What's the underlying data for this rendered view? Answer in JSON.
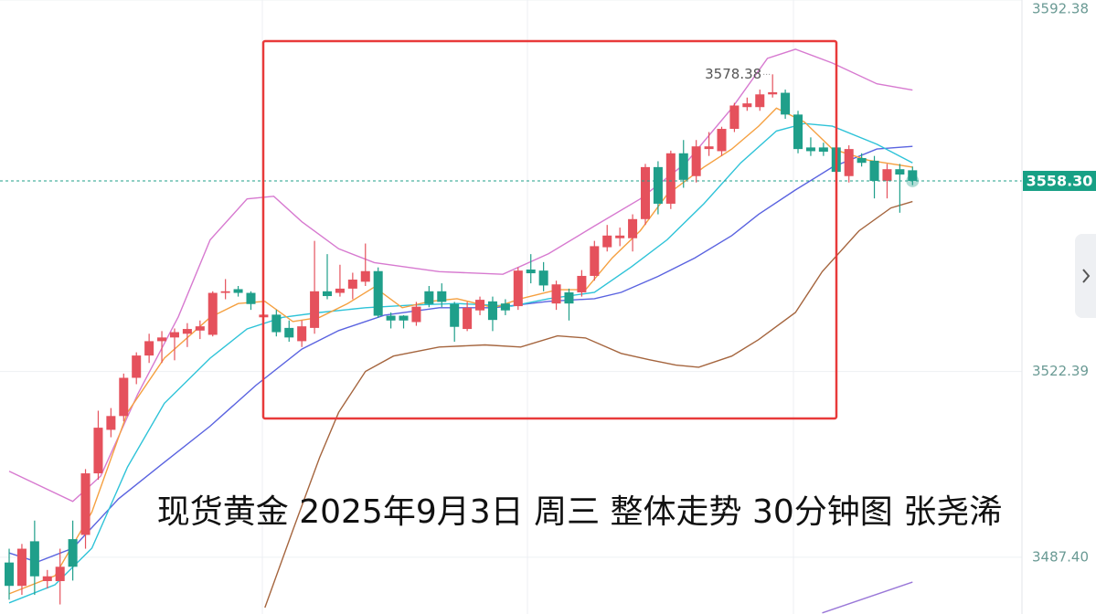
{
  "chart_data": {
    "type": "candlestick",
    "title": "现货黄金 2025年9月3日 周三 整体走势 30分钟图 张尧浠",
    "xlim": [
      -0.72,
      79.6
    ],
    "ylim": [
      3476.7,
      3592.38
    ],
    "yticks": [
      3592.38,
      3522.39,
      {
        "value": 3487.4,
        "label": "3487.40"
      }
    ],
    "current_price": {
      "value": 3558.3,
      "label": "3558.30"
    },
    "high_label": 3578.38,
    "up_color": "#e5515c",
    "down_color": "#1f9f8a",
    "open": [
      3486.4,
      3482.0,
      3490.4,
      3482.9,
      3482.9,
      3490.8,
      3491.6,
      3503.2,
      3511.4,
      3514.0,
      3521.2,
      3525.4,
      3528.1,
      3528.8,
      3529.5,
      3530.1,
      3529.3,
      3537.2,
      3537.9,
      3537.2,
      3532.6,
      3533.1,
      3530.6,
      3528.1,
      3530.6,
      3537.5,
      3537.2,
      3538.0,
      3539.3,
      3541.3,
      3532.9,
      3532.9,
      3531.7,
      3537.5,
      3537.5,
      3535.1,
      3530.4,
      3533.9,
      3535.6,
      3535.2,
      3534.7,
      3541.6,
      3541.4,
      3535.2,
      3537.3,
      3537.3,
      3540.4,
      3545.8,
      3547.5,
      3547.5,
      3551.1,
      3560.9,
      3554.0,
      3563.5,
      3559.2,
      3564.3,
      3563.9,
      3568.1,
      3572.2,
      3572.2,
      3574.6,
      3574.9,
      3570.8,
      3564.6,
      3564.6,
      3564.6,
      3559.2,
      3562.6,
      3562.1,
      3558.3,
      3560.5,
      3560.3
    ],
    "high": [
      3489.0,
      3489.9,
      3494.3,
      3485.0,
      3489.0,
      3494.3,
      3504.0,
      3515.0,
      3515.5,
      3522.0,
      3526.0,
      3529.5,
      3530.0,
      3530.5,
      3531.5,
      3532.0,
      3537.5,
      3539.8,
      3538.5,
      3537.5,
      3534.0,
      3534.0,
      3532.0,
      3532.0,
      3547.0,
      3544.5,
      3542.5,
      3541.0,
      3546.5,
      3542.0,
      3533.5,
      3533.0,
      3535.5,
      3538.5,
      3539.0,
      3535.5,
      3535.5,
      3536.5,
      3536.5,
      3536.0,
      3542.0,
      3544.5,
      3543.0,
      3539.5,
      3538.0,
      3541.5,
      3547.0,
      3550.0,
      3549.5,
      3552.0,
      3561.5,
      3562.0,
      3564.0,
      3566.0,
      3566.0,
      3567.5,
      3568.5,
      3573.0,
      3574.0,
      3575.5,
      3578.38,
      3575.5,
      3571.5,
      3566.5,
      3565.5,
      3565.5,
      3565.0,
      3563.5,
      3563.0,
      3561.5,
      3561.5,
      3561.0
    ],
    "low": [
      3479.4,
      3480.3,
      3480.3,
      3481.5,
      3478.5,
      3483.0,
      3489.0,
      3502.0,
      3510.0,
      3513.0,
      3520.0,
      3524.0,
      3524.0,
      3524.5,
      3527.0,
      3528.5,
      3529.0,
      3536.0,
      3536.5,
      3534.0,
      3532.0,
      3529.0,
      3528.0,
      3527.0,
      3529.5,
      3536.0,
      3536.5,
      3536.0,
      3538.5,
      3532.5,
      3530.5,
      3530.5,
      3531.0,
      3534.5,
      3534.5,
      3528.0,
      3530.0,
      3533.0,
      3530.0,
      3533.0,
      3534.0,
      3539.0,
      3537.5,
      3534.0,
      3532.0,
      3536.5,
      3539.5,
      3545.0,
      3546.0,
      3545.0,
      3550.0,
      3552.0,
      3553.0,
      3557.0,
      3558.0,
      3563.0,
      3563.0,
      3567.5,
      3571.5,
      3571.5,
      3574.0,
      3570.0,
      3563.5,
      3563.0,
      3563.0,
      3558.0,
      3558.0,
      3561.0,
      3555.0,
      3555.0,
      3552.3,
      3557.5
    ],
    "close": [
      3482.0,
      3489.0,
      3483.8,
      3483.8,
      3485.6,
      3485.6,
      3503.2,
      3511.8,
      3514.0,
      3521.2,
      3525.4,
      3528.1,
      3528.8,
      3529.8,
      3530.4,
      3530.9,
      3537.2,
      3537.5,
      3537.2,
      3535.1,
      3533.1,
      3529.8,
      3528.8,
      3530.9,
      3537.5,
      3536.6,
      3538.0,
      3539.7,
      3541.3,
      3532.9,
      3532.0,
      3532.0,
      3534.6,
      3535.1,
      3535.5,
      3530.8,
      3534.4,
      3535.9,
      3532.1,
      3533.9,
      3541.4,
      3540.9,
      3538.6,
      3538.8,
      3535.2,
      3540.4,
      3546.0,
      3548.0,
      3548.0,
      3551.1,
      3560.9,
      3554.0,
      3563.5,
      3558.5,
      3564.8,
      3564.8,
      3568.1,
      3572.5,
      3572.9,
      3574.6,
      3575.0,
      3570.8,
      3564.3,
      3563.9,
      3563.8,
      3560.0,
      3564.3,
      3561.7,
      3558.3,
      3560.5,
      3559.5,
      3558.3
    ],
    "series": [
      {
        "color": "#d77ad0",
        "x": [
          0,
          5.0,
          7.2,
          10.1,
          13.3,
          15.8,
          18.7,
          20.8,
          23.0,
          25.9,
          28.7,
          33.8,
          38.8,
          42.4,
          46.0,
          49.6,
          53.2,
          56.8,
          59.6,
          61.8,
          64.7,
          68.2,
          71.0
        ],
        "values": [
          3503.6,
          3497.9,
          3502.7,
          3518.1,
          3532.7,
          3547.2,
          3554.9,
          3555.4,
          3550.6,
          3545.5,
          3542.9,
          3541.2,
          3540.7,
          3544.6,
          3549.8,
          3554.9,
          3561.7,
          3572.0,
          3581.4,
          3583.1,
          3580.5,
          3576.6,
          3575.4
        ]
      },
      {
        "color": "#a5653e",
        "x": [
          20.1,
          22.3,
          24.4,
          25.9,
          28.0,
          30.2,
          33.8,
          37.4,
          40.2,
          43.1,
          45.3,
          48.1,
          50.3,
          52.4,
          54.2,
          56.8,
          58.9,
          61.8,
          63.9,
          66.8,
          69.3,
          71.0
        ],
        "values": [
          3477.9,
          3492.5,
          3506.2,
          3514.7,
          3522.4,
          3525.3,
          3527.0,
          3527.4,
          3527.0,
          3529.1,
          3528.7,
          3525.8,
          3524.6,
          3523.6,
          3523.2,
          3525.3,
          3528.4,
          3533.5,
          3541.2,
          3548.9,
          3553.2,
          3554.4
        ]
      },
      {
        "color": "#9a78d8",
        "x": [
          63.9,
          71.0
        ],
        "values": [
          3476.9,
          3482.7
        ]
      },
      {
        "color": "#5a63e0",
        "x": [
          0,
          2.2,
          5.0,
          8.6,
          12.2,
          15.8,
          19.4,
          23.0,
          25.9,
          29.5,
          33.8,
          38.1,
          42.4,
          46.0,
          48.1,
          51.0,
          53.9,
          56.8,
          58.9,
          61.8,
          64.7,
          68.2,
          71.0
        ],
        "values": [
          3488.2,
          3486.5,
          3489.1,
          3498.4,
          3505.3,
          3512.1,
          3519.8,
          3526.6,
          3530.1,
          3533.0,
          3534.4,
          3534.4,
          3535.6,
          3536.1,
          3537.3,
          3540.3,
          3543.8,
          3548.0,
          3552.0,
          3556.6,
          3560.9,
          3564.3,
          3564.8
        ]
      },
      {
        "color": "#2ec3d8",
        "x": [
          0,
          3.6,
          6.5,
          9.3,
          12.2,
          15.8,
          18.7,
          21.5,
          24.4,
          28.0,
          31.6,
          35.2,
          39.5,
          42.4,
          46.0,
          48.9,
          51.7,
          54.6,
          57.5,
          60.3,
          62.5,
          64.7,
          68.2,
          71.0
        ],
        "values": [
          3478.8,
          3482.2,
          3489.1,
          3504.4,
          3516.4,
          3524.9,
          3530.4,
          3532.6,
          3533.5,
          3534.4,
          3534.9,
          3535.2,
          3534.7,
          3536.1,
          3537.3,
          3542.1,
          3547.2,
          3554.0,
          3561.7,
          3567.7,
          3569.1,
          3568.6,
          3565.2,
          3561.7
        ]
      },
      {
        "color": "#f5a040",
        "x": [
          0,
          3.6,
          6.5,
          9.3,
          12.2,
          15.8,
          18.0,
          20.1,
          22.3,
          24.4,
          26.6,
          28.7,
          30.9,
          33.1,
          35.2,
          38.1,
          40.2,
          43.1,
          45.3,
          47.4,
          49.6,
          51.7,
          54.6,
          56.8,
          58.9,
          60.3,
          62.5,
          64.7,
          67.5,
          71.0
        ],
        "values": [
          3480.5,
          3483.9,
          3495.9,
          3514.7,
          3524.9,
          3532.6,
          3535.2,
          3535.6,
          3531.8,
          3532.6,
          3535.2,
          3538.3,
          3534.4,
          3535.6,
          3536.1,
          3534.4,
          3536.1,
          3537.8,
          3537.8,
          3543.8,
          3548.9,
          3555.7,
          3560.9,
          3564.3,
          3568.6,
          3572.0,
          3569.4,
          3564.3,
          3562.2,
          3560.9
        ]
      }
    ]
  }
}
